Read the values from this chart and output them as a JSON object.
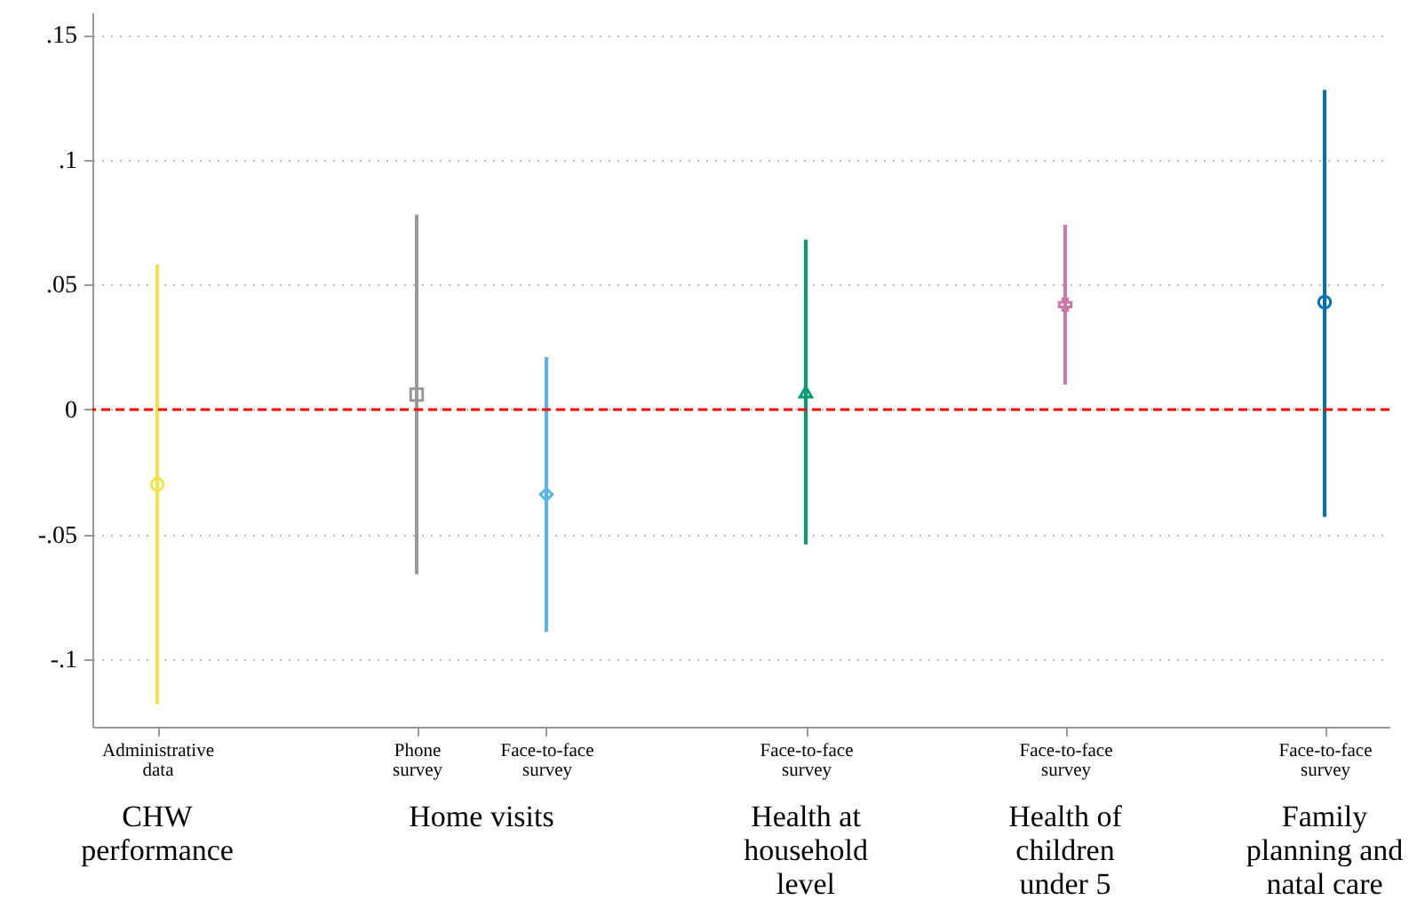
{
  "chart_data": {
    "type": "scatter",
    "categories": [
      "Administrative data",
      null,
      "Phone survey",
      "Face-to-face survey",
      null,
      "Face-to-face survey",
      null,
      "Face-to-face survey",
      null,
      "Face-to-face survey"
    ],
    "ylim": [
      -0.127,
      0.159
    ],
    "yticks": [
      {
        "value": -0.1,
        "label": "-.1"
      },
      {
        "value": -0.05,
        "label": "-.05"
      },
      {
        "value": 0,
        "label": "0"
      },
      {
        "value": 0.05,
        "label": ".05"
      },
      {
        "value": 0.1,
        "label": ".1"
      },
      {
        "value": 0.15,
        "label": ".15"
      }
    ],
    "grid": "y",
    "series": [
      {
        "color": "#f0e442",
        "marker": "circle",
        "values": [
          -0.03,
          null,
          null,
          null,
          null,
          null,
          null,
          null,
          null,
          null
        ],
        "errors": [
          [
            -0.118,
            0.058
          ],
          null,
          null,
          null,
          null,
          null,
          null,
          null,
          null,
          null
        ]
      },
      {
        "color": "#999999",
        "marker": "square",
        "values": [
          null,
          null,
          0.006,
          null,
          null,
          null,
          null,
          null,
          null,
          null
        ],
        "errors": [
          null,
          null,
          [
            -0.066,
            0.078
          ],
          null,
          null,
          null,
          null,
          null,
          null,
          null
        ]
      },
      {
        "color": "#56b4e9",
        "marker": "diamond",
        "values": [
          null,
          null,
          null,
          -0.034,
          null,
          null,
          null,
          null,
          null,
          null
        ],
        "errors": [
          null,
          null,
          null,
          [
            -0.089,
            0.021
          ],
          null,
          null,
          null,
          null,
          null,
          null
        ]
      },
      {
        "color": "#009e73",
        "marker": "triangle",
        "values": [
          null,
          null,
          null,
          null,
          null,
          0.007,
          null,
          null,
          null,
          null
        ],
        "errors": [
          null,
          null,
          null,
          null,
          null,
          [
            -0.054,
            0.068
          ],
          null,
          null,
          null,
          null
        ]
      },
      {
        "color": "#cc79a7",
        "marker": "cross",
        "values": [
          null,
          null,
          null,
          null,
          null,
          null,
          null,
          0.042,
          null,
          null
        ],
        "errors": [
          null,
          null,
          null,
          null,
          null,
          null,
          null,
          [
            0.01,
            0.074
          ],
          null,
          null
        ]
      },
      {
        "color": "#0072b2",
        "marker": "circle",
        "values": [
          null,
          null,
          null,
          null,
          null,
          null,
          null,
          null,
          null,
          0.043
        ],
        "errors": [
          null,
          null,
          null,
          null,
          null,
          null,
          null,
          null,
          null,
          [
            -0.043,
            0.128
          ]
        ]
      }
    ],
    "ref_lines": [
      {
        "axis": "y",
        "value": 0,
        "color": "#ff0000",
        "line_style": "dashed"
      }
    ],
    "annotations": [
      "CHW performance",
      "Home visits",
      "Health at household level",
      "Health of children under 5",
      "Family planning and natal care"
    ]
  }
}
